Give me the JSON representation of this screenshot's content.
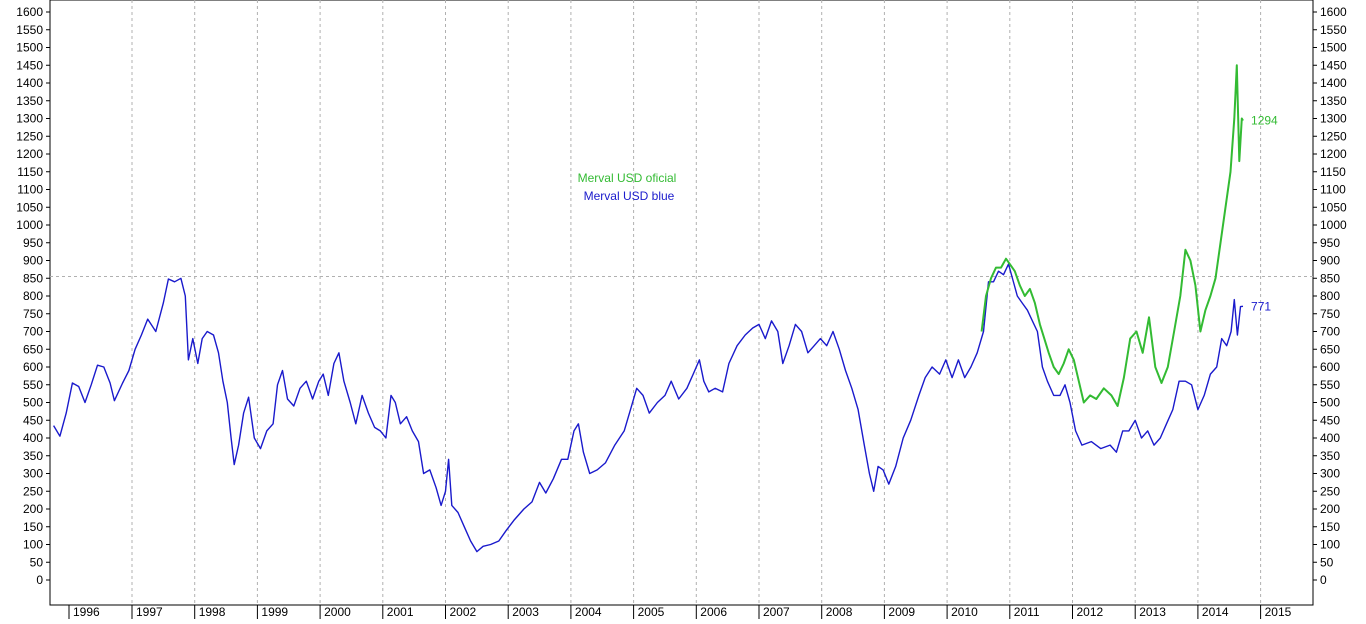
{
  "chart_data": {
    "type": "line",
    "title": "",
    "xlabel": "",
    "ylabel": "",
    "ylim": [
      0,
      1600
    ],
    "y_ticks": [
      0,
      50,
      100,
      150,
      200,
      250,
      300,
      350,
      400,
      450,
      500,
      550,
      600,
      650,
      700,
      750,
      800,
      850,
      900,
      950,
      1000,
      1050,
      1100,
      1150,
      1200,
      1250,
      1300,
      1350,
      1400,
      1450,
      1500,
      1550,
      1600
    ],
    "y_axes": "both-sides",
    "x_range": [
      1995.75,
      2015.35
    ],
    "x_tick_labels": [
      "1996",
      "1997",
      "1998",
      "1999",
      "2000",
      "2001",
      "2002",
      "2003",
      "2004",
      "2005",
      "2006",
      "2007",
      "2008",
      "2009",
      "2010",
      "2011",
      "2012",
      "2013",
      "2014",
      "2015"
    ],
    "grid": "dashed vertical lines at year boundaries",
    "reference_line": 855,
    "legend": {
      "placement": "center-top",
      "entries": [
        {
          "label": "Merval USD oficial",
          "color": "#33bb33"
        },
        {
          "label": "Merval USD blue",
          "color": "#1a1acc"
        }
      ]
    },
    "series": [
      {
        "name": "Merval USD blue",
        "color": "#1a1acc",
        "last_value_label": "771",
        "points": [
          [
            1995.75,
            435
          ],
          [
            1995.85,
            405
          ],
          [
            1995.95,
            470
          ],
          [
            1996.05,
            555
          ],
          [
            1996.15,
            545
          ],
          [
            1996.25,
            500
          ],
          [
            1996.35,
            550
          ],
          [
            1996.45,
            605
          ],
          [
            1996.55,
            600
          ],
          [
            1996.65,
            555
          ],
          [
            1996.72,
            505
          ],
          [
            1996.85,
            555
          ],
          [
            1996.95,
            590
          ],
          [
            1997.05,
            650
          ],
          [
            1997.15,
            690
          ],
          [
            1997.25,
            735
          ],
          [
            1997.38,
            700
          ],
          [
            1997.5,
            780
          ],
          [
            1997.58,
            848
          ],
          [
            1997.68,
            840
          ],
          [
            1997.78,
            850
          ],
          [
            1997.85,
            800
          ],
          [
            1997.9,
            620
          ],
          [
            1997.97,
            680
          ],
          [
            1998.05,
            610
          ],
          [
            1998.12,
            680
          ],
          [
            1998.2,
            700
          ],
          [
            1998.3,
            690
          ],
          [
            1998.38,
            640
          ],
          [
            1998.45,
            560
          ],
          [
            1998.52,
            500
          ],
          [
            1998.58,
            400
          ],
          [
            1998.63,
            325
          ],
          [
            1998.7,
            380
          ],
          [
            1998.78,
            470
          ],
          [
            1998.86,
            515
          ],
          [
            1998.95,
            400
          ],
          [
            1999.05,
            370
          ],
          [
            1999.15,
            420
          ],
          [
            1999.25,
            440
          ],
          [
            1999.32,
            550
          ],
          [
            1999.4,
            590
          ],
          [
            1999.48,
            510
          ],
          [
            1999.58,
            490
          ],
          [
            1999.68,
            540
          ],
          [
            1999.78,
            560
          ],
          [
            1999.88,
            510
          ],
          [
            1999.98,
            560
          ],
          [
            2000.05,
            580
          ],
          [
            2000.13,
            520
          ],
          [
            2000.22,
            610
          ],
          [
            2000.3,
            640
          ],
          [
            2000.38,
            560
          ],
          [
            2000.48,
            500
          ],
          [
            2000.57,
            440
          ],
          [
            2000.67,
            520
          ],
          [
            2000.77,
            470
          ],
          [
            2000.87,
            430
          ],
          [
            2000.96,
            420
          ],
          [
            2001.05,
            400
          ],
          [
            2001.13,
            520
          ],
          [
            2001.2,
            500
          ],
          [
            2001.28,
            440
          ],
          [
            2001.38,
            460
          ],
          [
            2001.47,
            420
          ],
          [
            2001.57,
            390
          ],
          [
            2001.65,
            300
          ],
          [
            2001.75,
            310
          ],
          [
            2001.85,
            260
          ],
          [
            2001.93,
            210
          ],
          [
            2002.0,
            250
          ],
          [
            2002.05,
            340
          ],
          [
            2002.1,
            210
          ],
          [
            2002.2,
            190
          ],
          [
            2002.3,
            150
          ],
          [
            2002.4,
            110
          ],
          [
            2002.5,
            80
          ],
          [
            2002.6,
            95
          ],
          [
            2002.72,
            100
          ],
          [
            2002.85,
            110
          ],
          [
            2002.97,
            140
          ],
          [
            2003.1,
            170
          ],
          [
            2003.25,
            200
          ],
          [
            2003.38,
            220
          ],
          [
            2003.5,
            275
          ],
          [
            2003.6,
            245
          ],
          [
            2003.72,
            285
          ],
          [
            2003.85,
            340
          ],
          [
            2003.95,
            340
          ],
          [
            2004.05,
            420
          ],
          [
            2004.12,
            440
          ],
          [
            2004.2,
            360
          ],
          [
            2004.3,
            300
          ],
          [
            2004.42,
            310
          ],
          [
            2004.55,
            330
          ],
          [
            2004.7,
            380
          ],
          [
            2004.85,
            420
          ],
          [
            2004.95,
            480
          ],
          [
            2005.05,
            540
          ],
          [
            2005.15,
            520
          ],
          [
            2005.25,
            470
          ],
          [
            2005.38,
            500
          ],
          [
            2005.5,
            520
          ],
          [
            2005.6,
            560
          ],
          [
            2005.72,
            510
          ],
          [
            2005.85,
            540
          ],
          [
            2005.95,
            580
          ],
          [
            2006.05,
            620
          ],
          [
            2006.12,
            560
          ],
          [
            2006.2,
            530
          ],
          [
            2006.3,
            540
          ],
          [
            2006.42,
            530
          ],
          [
            2006.52,
            610
          ],
          [
            2006.65,
            660
          ],
          [
            2006.78,
            690
          ],
          [
            2006.9,
            710
          ],
          [
            2007.0,
            720
          ],
          [
            2007.1,
            680
          ],
          [
            2007.2,
            730
          ],
          [
            2007.3,
            700
          ],
          [
            2007.38,
            610
          ],
          [
            2007.48,
            660
          ],
          [
            2007.58,
            720
          ],
          [
            2007.68,
            700
          ],
          [
            2007.78,
            640
          ],
          [
            2007.88,
            660
          ],
          [
            2007.98,
            680
          ],
          [
            2008.08,
            660
          ],
          [
            2008.18,
            700
          ],
          [
            2008.28,
            650
          ],
          [
            2008.38,
            590
          ],
          [
            2008.48,
            540
          ],
          [
            2008.58,
            480
          ],
          [
            2008.68,
            380
          ],
          [
            2008.76,
            300
          ],
          [
            2008.83,
            250
          ],
          [
            2008.9,
            320
          ],
          [
            2008.98,
            310
          ],
          [
            2009.07,
            270
          ],
          [
            2009.18,
            320
          ],
          [
            2009.3,
            400
          ],
          [
            2009.42,
            450
          ],
          [
            2009.55,
            520
          ],
          [
            2009.65,
            570
          ],
          [
            2009.76,
            600
          ],
          [
            2009.88,
            580
          ],
          [
            2009.98,
            620
          ],
          [
            2010.08,
            570
          ],
          [
            2010.18,
            620
          ],
          [
            2010.28,
            570
          ],
          [
            2010.38,
            600
          ],
          [
            2010.48,
            640
          ],
          [
            2010.58,
            700
          ],
          [
            2010.66,
            840
          ],
          [
            2010.74,
            840
          ],
          [
            2010.82,
            870
          ],
          [
            2010.9,
            860
          ],
          [
            2010.98,
            890
          ],
          [
            2011.05,
            845
          ],
          [
            2011.12,
            800
          ],
          [
            2011.2,
            780
          ],
          [
            2011.28,
            760
          ],
          [
            2011.36,
            730
          ],
          [
            2011.44,
            700
          ],
          [
            2011.52,
            600
          ],
          [
            2011.6,
            560
          ],
          [
            2011.7,
            520
          ],
          [
            2011.8,
            520
          ],
          [
            2011.88,
            550
          ],
          [
            2011.96,
            500
          ],
          [
            2012.05,
            420
          ],
          [
            2012.15,
            380
          ],
          [
            2012.3,
            390
          ],
          [
            2012.45,
            370
          ],
          [
            2012.6,
            380
          ],
          [
            2012.7,
            360
          ],
          [
            2012.8,
            420
          ],
          [
            2012.9,
            420
          ],
          [
            2013.0,
            450
          ],
          [
            2013.1,
            400
          ],
          [
            2013.2,
            420
          ],
          [
            2013.3,
            380
          ],
          [
            2013.4,
            400
          ],
          [
            2013.5,
            440
          ],
          [
            2013.6,
            480
          ],
          [
            2013.7,
            560
          ],
          [
            2013.8,
            560
          ],
          [
            2013.9,
            550
          ],
          [
            2014.0,
            480
          ],
          [
            2014.1,
            520
          ],
          [
            2014.2,
            580
          ],
          [
            2014.3,
            600
          ],
          [
            2014.38,
            680
          ],
          [
            2014.46,
            660
          ],
          [
            2014.53,
            700
          ],
          [
            2014.58,
            790
          ],
          [
            2014.63,
            690
          ],
          [
            2014.68,
            770
          ],
          [
            2014.72,
            771
          ]
        ]
      },
      {
        "name": "Merval USD oficial",
        "color": "#33bb33",
        "last_value_label": "1294",
        "points": [
          [
            2010.55,
            700
          ],
          [
            2010.62,
            800
          ],
          [
            2010.7,
            850
          ],
          [
            2010.78,
            880
          ],
          [
            2010.86,
            880
          ],
          [
            2010.94,
            905
          ],
          [
            2011.0,
            890
          ],
          [
            2011.08,
            870
          ],
          [
            2011.16,
            830
          ],
          [
            2011.24,
            800
          ],
          [
            2011.32,
            820
          ],
          [
            2011.4,
            780
          ],
          [
            2011.48,
            720
          ],
          [
            2011.55,
            680
          ],
          [
            2011.62,
            640
          ],
          [
            2011.7,
            600
          ],
          [
            2011.78,
            580
          ],
          [
            2011.86,
            610
          ],
          [
            2011.94,
            650
          ],
          [
            2012.02,
            620
          ],
          [
            2012.1,
            560
          ],
          [
            2012.18,
            500
          ],
          [
            2012.28,
            520
          ],
          [
            2012.38,
            510
          ],
          [
            2012.5,
            540
          ],
          [
            2012.62,
            520
          ],
          [
            2012.72,
            490
          ],
          [
            2012.82,
            570
          ],
          [
            2012.92,
            680
          ],
          [
            2013.02,
            700
          ],
          [
            2013.12,
            640
          ],
          [
            2013.22,
            740
          ],
          [
            2013.32,
            600
          ],
          [
            2013.42,
            555
          ],
          [
            2013.52,
            600
          ],
          [
            2013.62,
            700
          ],
          [
            2013.72,
            800
          ],
          [
            2013.8,
            930
          ],
          [
            2013.88,
            900
          ],
          [
            2013.96,
            830
          ],
          [
            2014.04,
            700
          ],
          [
            2014.12,
            760
          ],
          [
            2014.2,
            800
          ],
          [
            2014.28,
            850
          ],
          [
            2014.36,
            950
          ],
          [
            2014.44,
            1050
          ],
          [
            2014.52,
            1150
          ],
          [
            2014.58,
            1300
          ],
          [
            2014.62,
            1450
          ],
          [
            2014.66,
            1180
          ],
          [
            2014.7,
            1300
          ],
          [
            2014.72,
            1294
          ]
        ]
      }
    ]
  }
}
